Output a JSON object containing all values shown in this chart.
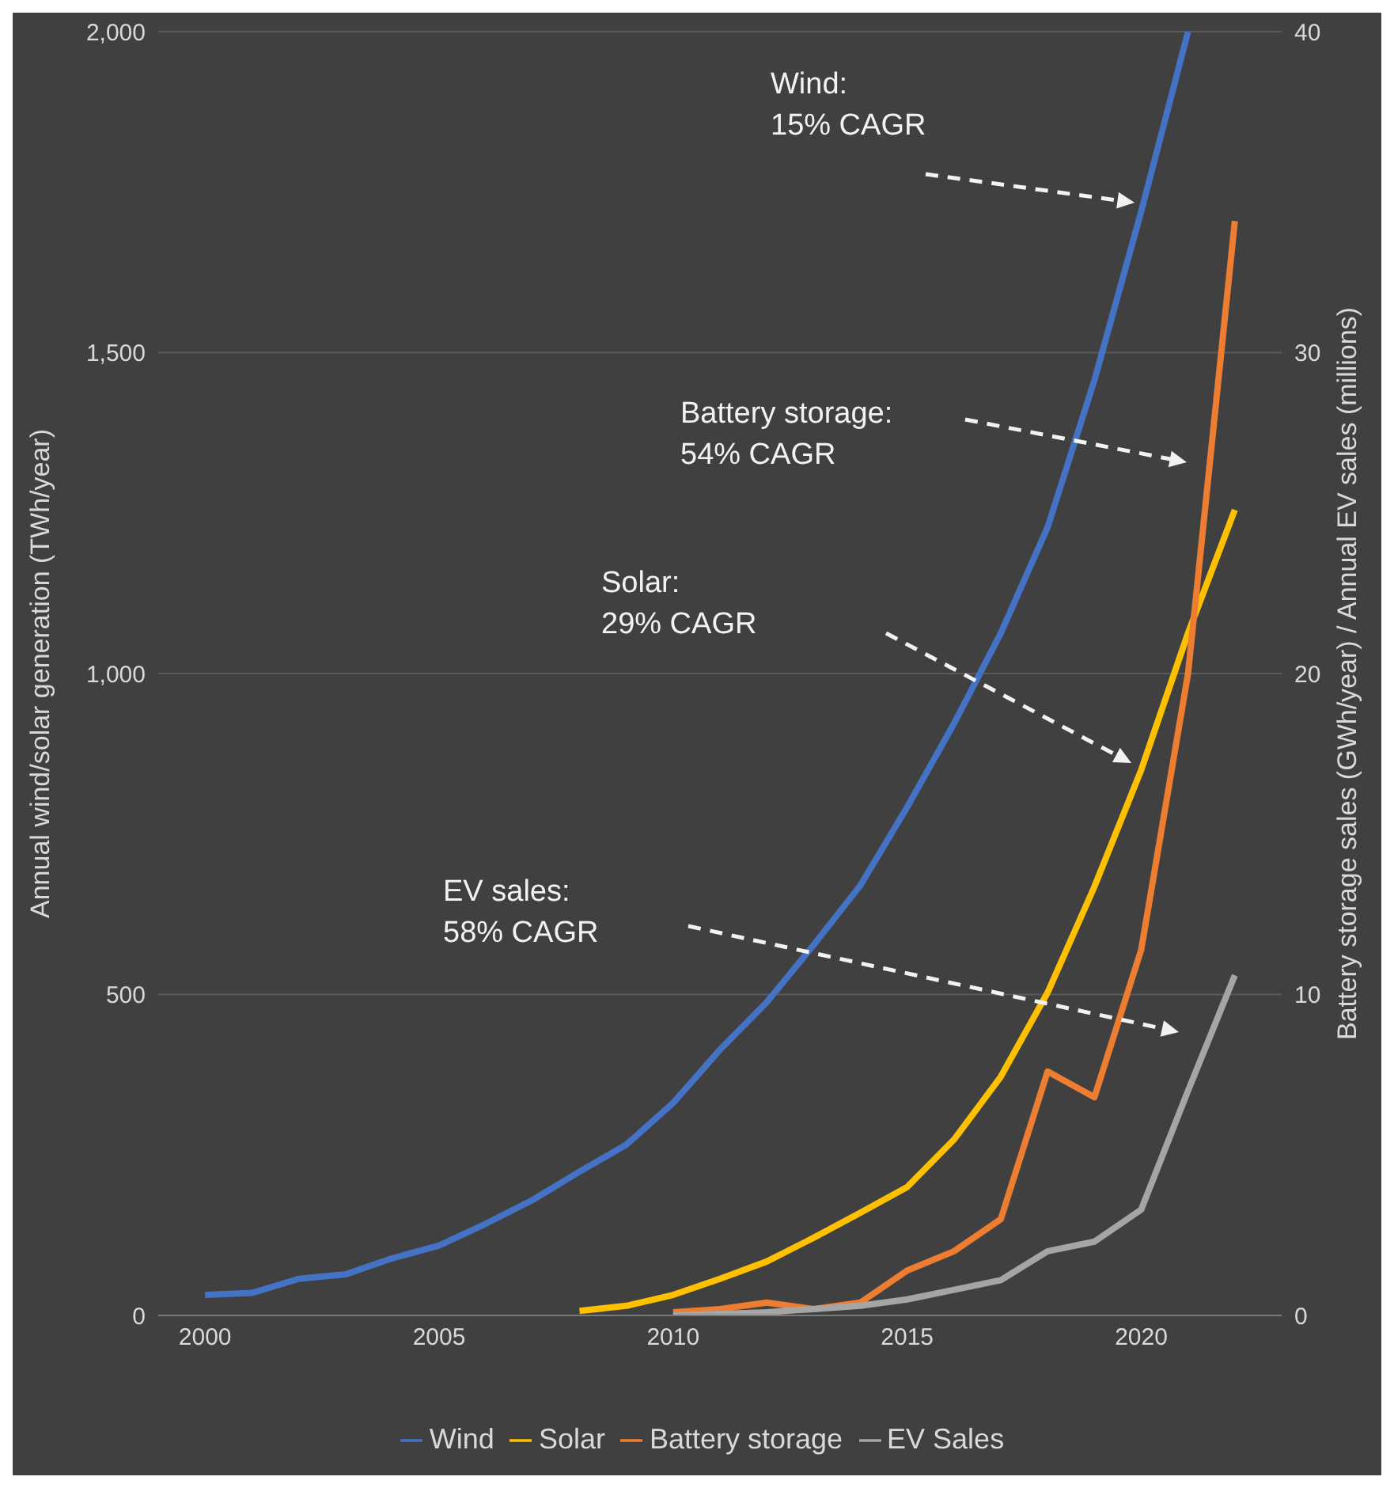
{
  "chart_data": {
    "type": "line",
    "ylabel": "Annual wind/solar generation (TWh/year)",
    "y2label": "Battery storage sales (GWh/year) / Annual EV sales (millions)",
    "x": [
      2000,
      2001,
      2002,
      2003,
      2004,
      2005,
      2006,
      2007,
      2008,
      2009,
      2010,
      2011,
      2012,
      2013,
      2014,
      2015,
      2016,
      2017,
      2018,
      2019,
      2020,
      2021,
      2022
    ],
    "series": [
      {
        "name": "Wind",
        "color": "#4472c4",
        "values": [
          32,
          35,
          57,
          64,
          89,
          109,
          143,
          180,
          224,
          266,
          331,
          414,
          488,
          577,
          670,
          792,
          922,
          1063,
          1228,
          1457,
          1720,
          2000,
          null
        ]
      },
      {
        "name": "Solar",
        "color": "#ffc000",
        "values": [
          null,
          null,
          null,
          null,
          null,
          null,
          null,
          null,
          7,
          15,
          32,
          57,
          84,
          121,
          160,
          200,
          274,
          372,
          503,
          668,
          850,
          1063,
          1255
        ]
      },
      {
        "name": "Battery storage",
        "color": "#ed7d31",
        "axis": "y2",
        "values": [
          null,
          null,
          null,
          null,
          null,
          null,
          null,
          null,
          null,
          null,
          0.1,
          0.2,
          0.4,
          0.2,
          0.4,
          1.4,
          2.0,
          3.0,
          7.6,
          6.8,
          11.4,
          20,
          34.1
        ]
      },
      {
        "name": "EV Sales",
        "color": "#a5a5a5",
        "axis": "y2",
        "values": [
          null,
          null,
          null,
          null,
          null,
          null,
          null,
          null,
          null,
          null,
          0,
          0.05,
          0.1,
          0.2,
          0.3,
          0.5,
          0.8,
          1.1,
          2.0,
          2.3,
          3.3,
          7.0,
          10.6
        ]
      }
    ],
    "xlim": [
      1999,
      2023
    ],
    "xticks": [
      2000,
      2005,
      2010,
      2015,
      2020
    ],
    "ylim": [
      0,
      2000
    ],
    "yticks": [
      {
        "value": 0,
        "label": "0"
      },
      {
        "value": 500,
        "label": "500"
      },
      {
        "value": 1000,
        "label": "1,000"
      },
      {
        "value": 1500,
        "label": "1,500"
      },
      {
        "value": 2000,
        "label": "2,000"
      }
    ],
    "y2lim": [
      0,
      40
    ],
    "y2ticks": [
      0,
      10,
      20,
      30,
      40
    ],
    "annotations": [
      "Wind:\n15% CAGR",
      "Battery storage:\n54% CAGR",
      "Solar:\n29% CAGR",
      "EV sales:\n58% CAGR"
    ],
    "grid": "y",
    "legend": "bottom",
    "marker": "none",
    "line_style": "solid"
  }
}
